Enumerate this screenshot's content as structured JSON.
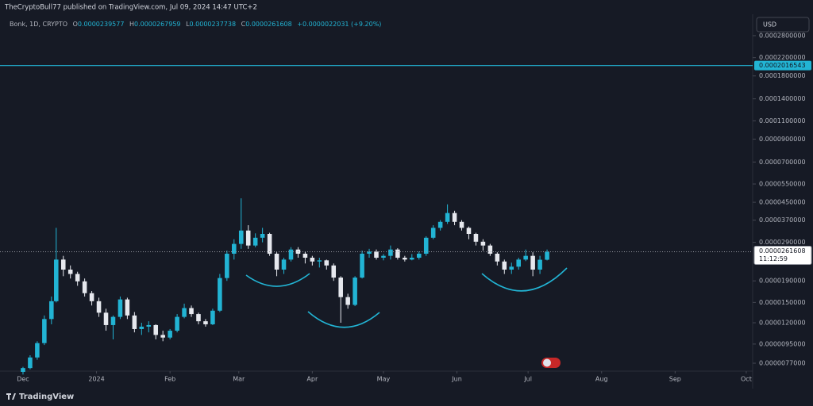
{
  "header": {
    "title": "TheCryptoBull77 published on TradingView.com, Jul 09, 2024 14:47 UTC+2"
  },
  "footer": {
    "brand": "TradingView"
  },
  "chart_data": {
    "type": "candlestick",
    "symbol": "Bonk, 1D, CRYPTO",
    "legend_labels": [
      "O",
      "H",
      "L",
      "C"
    ],
    "change": "+0.0000022031 (+9.20%)",
    "currency": "USD",
    "countdown": "11:12:59",
    "log_scale": true,
    "grid": false,
    "up_color": "#22b4d4",
    "down_color": "#e6e8ee",
    "x": [
      0,
      3,
      6,
      9,
      12,
      14,
      17,
      20,
      23,
      26,
      29,
      32,
      35,
      38,
      41,
      44,
      47,
      50,
      53,
      56,
      59,
      62,
      65,
      68,
      71,
      74,
      77,
      80,
      83,
      86,
      89,
      92,
      95,
      98,
      101,
      104,
      107,
      110,
      113,
      116,
      119,
      122,
      125,
      128,
      131,
      134,
      137,
      140,
      143,
      146,
      149,
      152,
      155,
      158,
      161,
      164,
      167,
      170,
      173,
      176,
      179,
      182,
      185,
      188,
      191,
      194,
      197,
      200,
      203,
      206,
      209,
      212,
      215,
      218,
      221
    ],
    "open": [
      7e-06,
      7.3e-06,
      8.2e-06,
      9.6e-06,
      1.25e-05,
      1.52e-05,
      2.4e-05,
      2.15e-05,
      2.05e-05,
      1.89e-05,
      1.66e-05,
      1.52e-05,
      1.34e-05,
      1.17e-05,
      1.28e-05,
      1.55e-05,
      1.3e-05,
      1.12e-05,
      1.15e-05,
      1.17e-05,
      1.05e-05,
      1.02e-05,
      1.1e-05,
      1.28e-05,
      1.41e-05,
      1.32e-05,
      1.22e-05,
      1.18e-05,
      1.37e-05,
      1.96e-05,
      2.56e-05,
      2.85e-05,
      3.3e-05,
      2.8e-05,
      3.05e-05,
      3.18e-05,
      2.56e-05,
      2.15e-05,
      2.4e-05,
      2.68e-05,
      2.56e-05,
      2.45e-05,
      2.35e-05,
      2.38e-05,
      2.25e-05,
      1.97e-05,
      1.59e-05,
      1.46e-05,
      1.97e-05,
      2.56e-05,
      2.62e-05,
      2.45e-05,
      2.5e-05,
      2.68e-05,
      2.45e-05,
      2.4e-05,
      2.45e-05,
      2.56e-05,
      3.05e-05,
      3.4e-05,
      3.63e-05,
      4e-05,
      3.63e-05,
      3.4e-05,
      3.18e-05,
      2.92e-05,
      2.8e-05,
      2.56e-05,
      2.35e-05,
      2.15e-05,
      2.22e-05,
      2.4e-05,
      2.5e-05,
      2.15e-05,
      2.39577e-05
    ],
    "high": [
      7.4e-06,
      8.4e-06,
      9.8e-06,
      1.3e-05,
      1.6e-05,
      3.4e-05,
      2.5e-05,
      2.25e-05,
      2.1e-05,
      1.95e-05,
      1.7e-05,
      1.58e-05,
      1.4e-05,
      1.3e-05,
      1.6e-05,
      1.58e-05,
      1.35e-05,
      1.2e-05,
      1.22e-05,
      1.18e-05,
      1.1e-05,
      1.12e-05,
      1.32e-05,
      1.48e-05,
      1.45e-05,
      1.34e-05,
      1.25e-05,
      1.4e-05,
      2.05e-05,
      2.65e-05,
      3e-05,
      4.7e-05,
      3.5e-05,
      3.2e-05,
      3.4e-05,
      3.22e-05,
      2.6e-05,
      2.45e-05,
      2.75e-05,
      2.75e-05,
      2.62e-05,
      2.5e-05,
      2.45e-05,
      2.4e-05,
      2.3e-05,
      2e-05,
      1.65e-05,
      2e-05,
      2.65e-05,
      2.7e-05,
      2.68e-05,
      2.55e-05,
      2.8e-05,
      2.72e-05,
      2.5e-05,
      2.55e-05,
      2.62e-05,
      3.1e-05,
      3.5e-05,
      3.7e-05,
      4.4e-05,
      4.1e-05,
      3.7e-05,
      3.45e-05,
      3.22e-05,
      3e-05,
      2.85e-05,
      2.6e-05,
      2.4e-05,
      2.32e-05,
      2.45e-05,
      2.68e-05,
      2.6e-05,
      2.5e-05,
      2.67959e-05
    ],
    "low": [
      6.8e-06,
      7.2e-06,
      8e-06,
      9.4e-06,
      1.18e-05,
      1.5e-05,
      2e-05,
      1.95e-05,
      1.8e-05,
      1.6e-05,
      1.45e-05,
      1.28e-05,
      1.1e-05,
      1e-05,
      1.25e-05,
      1.25e-05,
      1.08e-05,
      1.05e-05,
      1.08e-05,
      1e-05,
      9.8e-06,
      1e-05,
      1.08e-05,
      1.26e-05,
      1.28e-05,
      1.18e-05,
      1.15e-05,
      1.17e-05,
      1.35e-05,
      1.9e-05,
      2.4e-05,
      2.7e-05,
      2.7e-05,
      2.75e-05,
      2.9e-05,
      2.5e-05,
      2e-05,
      2.05e-05,
      2.35e-05,
      2.45e-05,
      2.3e-05,
      2.25e-05,
      2.2e-05,
      2.15e-05,
      1.9e-05,
      1.2e-05,
      1.4e-05,
      1.44e-05,
      1.95e-05,
      2.45e-05,
      2.4e-05,
      2.38e-05,
      2.4e-05,
      2.4e-05,
      2.35e-05,
      2.38e-05,
      2.4e-05,
      2.5e-05,
      3e-05,
      3.3e-05,
      3.55e-05,
      3.5e-05,
      3.3e-05,
      3e-05,
      2.8e-05,
      2.65e-05,
      2.5e-05,
      2.25e-05,
      2.05e-05,
      2.05e-05,
      2.15e-05,
      2.36e-05,
      2e-05,
      2.05e-05,
      2.37738e-05
    ],
    "close": [
      7.3e-06,
      8.2e-06,
      9.6e-06,
      1.25e-05,
      1.52e-05,
      2.4e-05,
      2.15e-05,
      2.05e-05,
      1.89e-05,
      1.66e-05,
      1.52e-05,
      1.34e-05,
      1.17e-05,
      1.28e-05,
      1.55e-05,
      1.3e-05,
      1.12e-05,
      1.15e-05,
      1.17e-05,
      1.05e-05,
      1.02e-05,
      1.1e-05,
      1.28e-05,
      1.41e-05,
      1.32e-05,
      1.22e-05,
      1.18e-05,
      1.37e-05,
      1.96e-05,
      2.56e-05,
      2.85e-05,
      3.3e-05,
      2.8e-05,
      3.05e-05,
      3.18e-05,
      2.56e-05,
      2.15e-05,
      2.4e-05,
      2.68e-05,
      2.56e-05,
      2.45e-05,
      2.35e-05,
      2.38e-05,
      2.25e-05,
      1.97e-05,
      1.59e-05,
      1.46e-05,
      1.97e-05,
      2.56e-05,
      2.62e-05,
      2.45e-05,
      2.5e-05,
      2.68e-05,
      2.45e-05,
      2.4e-05,
      2.45e-05,
      2.56e-05,
      3.05e-05,
      3.4e-05,
      3.63e-05,
      4e-05,
      3.63e-05,
      3.4e-05,
      3.18e-05,
      2.92e-05,
      2.8e-05,
      2.56e-05,
      2.35e-05,
      2.15e-05,
      2.22e-05,
      2.4e-05,
      2.5e-05,
      2.15e-05,
      2.39577e-05,
      2.61608e-05
    ],
    "hline": {
      "value": 0.0002016543,
      "color": "#22b4d4"
    },
    "xlim": [
      -9.7,
      307.7
    ],
    "xticks": [
      {
        "value": 0,
        "label": "Dec"
      },
      {
        "value": 31,
        "label": "2024"
      },
      {
        "value": 62,
        "label": "Feb"
      },
      {
        "value": 91,
        "label": "Mar"
      },
      {
        "value": 122,
        "label": "Apr"
      },
      {
        "value": 152,
        "label": "May"
      },
      {
        "value": 183,
        "label": "Jun"
      },
      {
        "value": 213,
        "label": "Jul"
      },
      {
        "value": 244,
        "label": "Aug"
      },
      {
        "value": 275,
        "label": "Sep"
      },
      {
        "value": 305,
        "label": "Oct"
      }
    ],
    "ylim": [
      7.06e-06,
      0.000354
    ],
    "yticks": [
      {
        "value": 0.00028,
        "label": "0.0002800000"
      },
      {
        "value": 0.00022,
        "label": "0.0002200000"
      },
      {
        "value": 0.00018,
        "label": "0.0001800000"
      },
      {
        "value": 0.00014,
        "label": "0.0001400000"
      },
      {
        "value": 0.00011,
        "label": "0.0001100000"
      },
      {
        "value": 9e-05,
        "label": "0.0000900000"
      },
      {
        "value": 7e-05,
        "label": "0.0000700000"
      },
      {
        "value": 5.5e-05,
        "label": "0.0000550000"
      },
      {
        "value": 4.5e-05,
        "label": "0.0000450000"
      },
      {
        "value": 3.7e-05,
        "label": "0.0000370000"
      },
      {
        "value": 2.9e-05,
        "label": "0.0000290000"
      },
      {
        "value": 1.9e-05,
        "label": "0.0000190000"
      },
      {
        "value": 1.5e-05,
        "label": "0.0000150000"
      },
      {
        "value": 1.2e-05,
        "label": "0.0000120000"
      },
      {
        "value": 9.5e-06,
        "label": "0.0000095000"
      },
      {
        "value": 7.7e-06,
        "label": "0.0000077000"
      }
    ]
  }
}
